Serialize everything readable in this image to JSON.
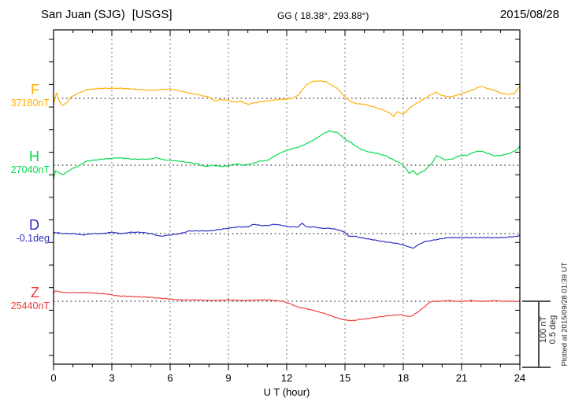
{
  "header": {
    "station": "San Juan (SJG)",
    "source": "[USGS]",
    "coordinates": "GG ( 18.38°, 293.88°)",
    "date": "2015/08/28"
  },
  "footer": {
    "plotted_at": "Plotted at 2015/09/28 01:39 UT"
  },
  "scale_bar": {
    "line1": "100 nT",
    "line2": "0.5 deg"
  },
  "chart_data": {
    "type": "line",
    "title": "San Juan (SJG) [USGS] magnetogram for 2015/08/28",
    "xlabel": "U T (hour)",
    "x_range": [
      0,
      24
    ],
    "x_ticks": [
      0,
      3,
      6,
      9,
      12,
      15,
      18,
      21,
      24
    ],
    "grid": "dotted vertical lines every 3 h; dotted horizontal zero line per channel",
    "legend_position": "channel letters and baseline values on left margin",
    "scale": {
      "nT_per_division": 100,
      "deg_per_division": 0.5
    },
    "offset_meaning": "points are [UT hour, deviation from baseline_value in unit]",
    "series": [
      {
        "key": "F",
        "label": "F",
        "baseline_label": "37180nT",
        "baseline_value": 37180,
        "unit": "nT",
        "color": "#FFAE00",
        "points": [
          [
            0,
            -9
          ],
          [
            0.15,
            8
          ],
          [
            0.3,
            -4
          ],
          [
            0.45,
            -11
          ],
          [
            0.7,
            -6
          ],
          [
            0.9,
            2
          ],
          [
            1.3,
            8
          ],
          [
            1.7,
            13
          ],
          [
            2.1,
            14
          ],
          [
            2.5,
            15
          ],
          [
            3,
            15
          ],
          [
            3.5,
            15
          ],
          [
            4,
            14
          ],
          [
            4.5,
            13
          ],
          [
            5,
            12
          ],
          [
            5.5,
            13
          ],
          [
            6,
            14
          ],
          [
            6.5,
            11
          ],
          [
            7,
            8
          ],
          [
            7.5,
            5
          ],
          [
            8,
            2
          ],
          [
            8.3,
            -4
          ],
          [
            8.6,
            -2
          ],
          [
            9,
            -3
          ],
          [
            9.3,
            -6
          ],
          [
            9.6,
            -4
          ],
          [
            10,
            -9
          ],
          [
            10.3,
            -7
          ],
          [
            10.7,
            -5
          ],
          [
            11,
            -4
          ],
          [
            11.5,
            -2
          ],
          [
            12,
            -1
          ],
          [
            12.3,
            0
          ],
          [
            12.6,
            5
          ],
          [
            13,
            20
          ],
          [
            13.3,
            25
          ],
          [
            13.6,
            26
          ],
          [
            14,
            25
          ],
          [
            14.3,
            20
          ],
          [
            14.6,
            15
          ],
          [
            15,
            2
          ],
          [
            15.3,
            -5
          ],
          [
            15.6,
            -8
          ],
          [
            16,
            -9
          ],
          [
            16.5,
            -13
          ],
          [
            17,
            -18
          ],
          [
            17.3,
            -22
          ],
          [
            17.5,
            -27
          ],
          [
            17.7,
            -20
          ],
          [
            18,
            -24
          ],
          [
            18.3,
            -15
          ],
          [
            18.6,
            -9
          ],
          [
            19,
            -2
          ],
          [
            19.4,
            5
          ],
          [
            19.7,
            9
          ],
          [
            20,
            4
          ],
          [
            20.4,
            2
          ],
          [
            20.8,
            5
          ],
          [
            21.2,
            9
          ],
          [
            21.6,
            13
          ],
          [
            22,
            18
          ],
          [
            22.3,
            15
          ],
          [
            22.7,
            12
          ],
          [
            23,
            8
          ],
          [
            23.3,
            6
          ],
          [
            23.7,
            7
          ],
          [
            24,
            18
          ]
        ]
      },
      {
        "key": "H",
        "label": "H",
        "baseline_label": "27040nT",
        "baseline_value": 27040,
        "unit": "nT",
        "color": "#00D94A",
        "points": [
          [
            0,
            -21
          ],
          [
            0.1,
            -8
          ],
          [
            0.3,
            -12
          ],
          [
            0.5,
            -14
          ],
          [
            0.9,
            -6
          ],
          [
            1.3,
            -1
          ],
          [
            1.7,
            6
          ],
          [
            2.5,
            9
          ],
          [
            3.3,
            11
          ],
          [
            4.1,
            9
          ],
          [
            4.9,
            9
          ],
          [
            5.3,
            11
          ],
          [
            5.7,
            8
          ],
          [
            6.5,
            6
          ],
          [
            7.4,
            2
          ],
          [
            7.8,
            -2
          ],
          [
            8.2,
            0
          ],
          [
            8.6,
            -2
          ],
          [
            9,
            -1
          ],
          [
            9.4,
            2
          ],
          [
            9.8,
            0
          ],
          [
            10.2,
            2
          ],
          [
            10.6,
            6
          ],
          [
            11,
            7
          ],
          [
            11.4,
            14
          ],
          [
            11.8,
            20
          ],
          [
            12.2,
            24
          ],
          [
            12.6,
            27
          ],
          [
            13,
            32
          ],
          [
            13.4,
            38
          ],
          [
            14,
            49
          ],
          [
            14.2,
            51
          ],
          [
            14.6,
            49
          ],
          [
            15,
            39
          ],
          [
            15.4,
            32
          ],
          [
            15.8,
            24
          ],
          [
            16.2,
            20
          ],
          [
            16.6,
            18
          ],
          [
            17.1,
            14
          ],
          [
            17.5,
            8
          ],
          [
            17.9,
            2
          ],
          [
            18.1,
            -4
          ],
          [
            18.3,
            -12
          ],
          [
            18.5,
            -8
          ],
          [
            18.7,
            -14
          ],
          [
            19.1,
            -8
          ],
          [
            19.5,
            4
          ],
          [
            19.7,
            14
          ],
          [
            19.9,
            12
          ],
          [
            20.1,
            8
          ],
          [
            20.5,
            9
          ],
          [
            20.9,
            14
          ],
          [
            21.3,
            15
          ],
          [
            21.7,
            20
          ],
          [
            22,
            21
          ],
          [
            22.3,
            18
          ],
          [
            22.7,
            14
          ],
          [
            23.1,
            15
          ],
          [
            23.5,
            18
          ],
          [
            23.9,
            24
          ],
          [
            24,
            29
          ]
        ]
      },
      {
        "key": "D",
        "label": "D",
        "baseline_label": "-0.1deg",
        "baseline_value": -0.1,
        "unit": "deg",
        "color": "#2B2BC8",
        "points": [
          [
            0,
            0.01
          ],
          [
            0.5,
            0
          ],
          [
            1,
            0
          ],
          [
            1.5,
            -0.01
          ],
          [
            2,
            0
          ],
          [
            2.5,
            0
          ],
          [
            3,
            0.01
          ],
          [
            3.5,
            0
          ],
          [
            4,
            0.01
          ],
          [
            4.5,
            0.01
          ],
          [
            5,
            0
          ],
          [
            5.5,
            -0.02
          ],
          [
            6,
            -0.01
          ],
          [
            6.5,
            0
          ],
          [
            7,
            0.02
          ],
          [
            7.5,
            0.02
          ],
          [
            8,
            0.02
          ],
          [
            8.5,
            0.03
          ],
          [
            9,
            0.04
          ],
          [
            9.5,
            0.05
          ],
          [
            10,
            0.05
          ],
          [
            10.3,
            0.07
          ],
          [
            10.7,
            0.06
          ],
          [
            11,
            0.06
          ],
          [
            11.4,
            0.07
          ],
          [
            11.8,
            0.06
          ],
          [
            12.2,
            0.05
          ],
          [
            12.6,
            0.05
          ],
          [
            12.8,
            0.08
          ],
          [
            13,
            0.05
          ],
          [
            13.4,
            0.05
          ],
          [
            13.8,
            0.04
          ],
          [
            14.2,
            0.04
          ],
          [
            14.6,
            0.03
          ],
          [
            15,
            0.01
          ],
          [
            15.2,
            -0.02
          ],
          [
            15.5,
            -0.02
          ],
          [
            15.8,
            -0.03
          ],
          [
            16.2,
            -0.04
          ],
          [
            16.6,
            -0.05
          ],
          [
            17,
            -0.06
          ],
          [
            17.5,
            -0.07
          ],
          [
            17.9,
            -0.08
          ],
          [
            18.3,
            -0.1
          ],
          [
            18.5,
            -0.11
          ],
          [
            18.7,
            -0.09
          ],
          [
            19.1,
            -0.06
          ],
          [
            19.5,
            -0.05
          ],
          [
            19.9,
            -0.04
          ],
          [
            20.3,
            -0.03
          ],
          [
            20.7,
            -0.03
          ],
          [
            21.5,
            -0.03
          ],
          [
            22.3,
            -0.03
          ],
          [
            23.1,
            -0.03
          ],
          [
            23.9,
            -0.02
          ],
          [
            24,
            -0.01
          ]
        ]
      },
      {
        "key": "Z",
        "label": "Z",
        "baseline_label": "25440nT",
        "baseline_value": 25440,
        "unit": "nT",
        "color": "#EE3B3B",
        "points": [
          [
            0,
            12
          ],
          [
            0.1,
            16
          ],
          [
            0.3,
            14
          ],
          [
            0.7,
            13
          ],
          [
            1.2,
            13
          ],
          [
            1.7,
            13
          ],
          [
            2.2,
            12
          ],
          [
            2.7,
            11
          ],
          [
            3.3,
            8
          ],
          [
            4.1,
            7
          ],
          [
            4.9,
            6
          ],
          [
            5.7,
            4
          ],
          [
            6.5,
            2
          ],
          [
            7.4,
            2
          ],
          [
            8.2,
            1
          ],
          [
            9,
            2
          ],
          [
            9.8,
            1
          ],
          [
            10.6,
            2
          ],
          [
            11,
            2
          ],
          [
            11.4,
            1
          ],
          [
            11.8,
            0
          ],
          [
            12.2,
            -4
          ],
          [
            12.6,
            -9
          ],
          [
            13,
            -11
          ],
          [
            13.4,
            -14
          ],
          [
            13.8,
            -17
          ],
          [
            14.2,
            -21
          ],
          [
            14.6,
            -25
          ],
          [
            15,
            -28
          ],
          [
            15.4,
            -29
          ],
          [
            15.8,
            -27
          ],
          [
            16.2,
            -26
          ],
          [
            16.6,
            -24
          ],
          [
            17.1,
            -22
          ],
          [
            17.5,
            -21
          ],
          [
            17.9,
            -20
          ],
          [
            18.1,
            -22
          ],
          [
            18.3,
            -23
          ],
          [
            18.5,
            -21
          ],
          [
            18.8,
            -15
          ],
          [
            19.1,
            -8
          ],
          [
            19.3,
            -3
          ],
          [
            19.5,
            0
          ],
          [
            19.9,
            0
          ],
          [
            20.3,
            1
          ],
          [
            20.7,
            0
          ],
          [
            21.1,
            0
          ],
          [
            21.5,
            1
          ],
          [
            21.9,
            0
          ],
          [
            22.3,
            0
          ],
          [
            22.7,
            1
          ],
          [
            23.1,
            0
          ],
          [
            23.5,
            0
          ],
          [
            24,
            0
          ]
        ]
      }
    ]
  }
}
